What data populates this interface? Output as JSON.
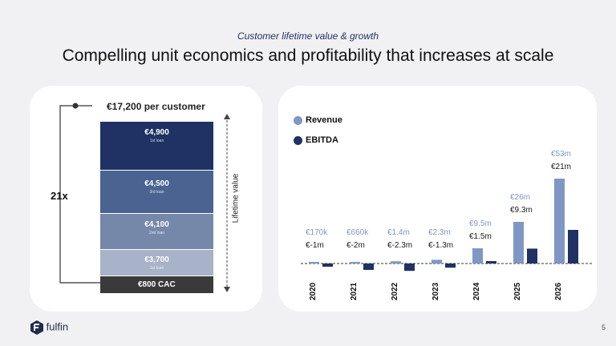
{
  "header": {
    "subtitle": "Customer lifetime value & growth",
    "title": "Compelling unit economics and profitability that increases at scale"
  },
  "ltv": {
    "per_customer": "€17,200 per customer",
    "multiple": "21x",
    "axis_label": "Lifetime value",
    "cac": "€800 CAC",
    "layers": [
      {
        "value": "€4,900",
        "sub": "1st loan",
        "color": "#1f3263"
      },
      {
        "value": "€4,500",
        "sub": "3rd loan",
        "color": "#4a6390"
      },
      {
        "value": "€4,100",
        "sub": "2nd loan",
        "color": "#7588a9"
      },
      {
        "value": "€3,700",
        "sub": "1st loan",
        "color": "#a8b2c8"
      }
    ]
  },
  "chart_data": {
    "type": "bar",
    "categories": [
      "2020",
      "2021",
      "2022",
      "2023",
      "2024",
      "2025",
      "2026"
    ],
    "series": [
      {
        "name": "Revenue",
        "color": "#7f97c4",
        "values": [
          0.17,
          0.66,
          1.4,
          2.3,
          9.5,
          26,
          53
        ]
      },
      {
        "name": "EBITDA",
        "color": "#1f3263",
        "values": [
          -1,
          -2,
          -2.3,
          -1.3,
          1.5,
          9.3,
          21
        ]
      }
    ],
    "revenue_labels": [
      "€170k",
      "€660k",
      "€1.4m",
      "€2.3m",
      "€9.5m",
      "€26m",
      "€53m"
    ],
    "ebitda_labels": [
      "€-1m",
      "€-2m",
      "€-2.3m",
      "€-1.3m",
      "€1.5m",
      "€9.3m",
      "€21m"
    ],
    "legend": "top-left"
  },
  "footer": {
    "brand": "fulfin",
    "page": "5"
  }
}
